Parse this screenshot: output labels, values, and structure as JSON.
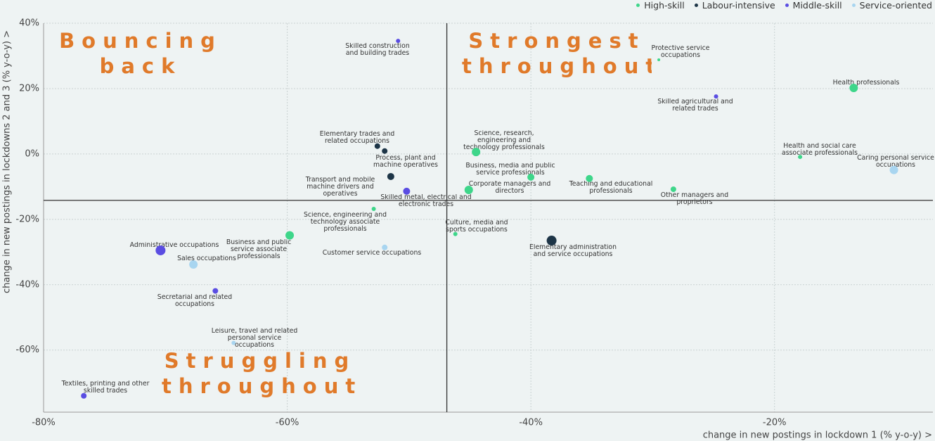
{
  "chart_data": {
    "type": "scatter",
    "x_label": "change in new postings in lockdown 1 (% y-o-y) >",
    "y_label": "change in new postings in lockdowns 2 and 3 (% y-o-y) >",
    "xlim": [
      -80,
      -7
    ],
    "ylim": [
      -79,
      40
    ],
    "xticks": [
      {
        "value": -80,
        "label": "-80%"
      },
      {
        "value": -60,
        "label": "-60%"
      },
      {
        "value": -40,
        "label": "-40%"
      },
      {
        "value": -20,
        "label": "-20%"
      }
    ],
    "yticks": [
      {
        "value": 40,
        "label": "40%"
      },
      {
        "value": 20,
        "label": "20%"
      },
      {
        "value": 0,
        "label": "0%"
      },
      {
        "value": -20,
        "label": "-20%"
      },
      {
        "value": -40,
        "label": "-40%"
      },
      {
        "value": -60,
        "label": "-60%"
      }
    ],
    "grid": true,
    "legend": "top-right",
    "xref": -46.9,
    "yref": -14.2,
    "quadrant_labels": [
      "Bouncing back",
      "Strongest throughout",
      "Struggling throughout"
    ],
    "series": [
      {
        "name": "High-skill",
        "color": "#3ed68a",
        "labels": [
          "Protective service occupations",
          "Health professionals",
          "Health and social care associate professionals",
          "Science, research, engineering and technology professionals",
          "Business, media and public service professionals",
          "Teaching and educational professionals",
          "Other managers and proprietors",
          "Corporate managers and directors",
          "Science, engineering and technology associate professionals",
          "Culture, media and sports occupations",
          "Business and public service associate professionals"
        ],
        "x": [
          -29.5,
          -13.5,
          -17.9,
          -44.5,
          -40,
          -35.2,
          -28.3,
          -45.1,
          -52.9,
          -46.2,
          -59.8
        ],
        "values": [
          28.8,
          20.2,
          -0.9,
          0.6,
          -7.1,
          -7.5,
          -10.8,
          -11,
          -16.8,
          -24.5,
          -24.9
        ],
        "sizes": [
          2,
          6,
          3,
          6,
          5,
          5,
          4,
          6,
          3,
          3,
          6
        ]
      },
      {
        "name": "Labour-intensive",
        "color": "#1d3547",
        "labels": [
          "Elementary trades and related occupations",
          "Process, plant and machine operatives",
          "Transport and mobile machine drivers and operatives",
          "Elementary administration and service occupations"
        ],
        "x": [
          -52.6,
          -52,
          -51.5,
          -38.3
        ],
        "values": [
          2.4,
          0.9,
          -6.9,
          -26.5
        ],
        "sizes": [
          4,
          4,
          5,
          7
        ]
      },
      {
        "name": "Middle-skill",
        "color": "#5a4de2",
        "labels": [
          "Skilled construction and building trades",
          "Skilled agricultural and related trades",
          "Skilled metal, electrical and electronic trades",
          "Administrative occupations",
          "Secretarial and related occupations",
          "Textiles, printing and other skilled trades"
        ],
        "x": [
          -50.9,
          -24.8,
          -50.2,
          -70.4,
          -65.9,
          -76.7
        ],
        "values": [
          34.6,
          17.6,
          -11.4,
          -29.5,
          -41.9,
          -74
        ],
        "sizes": [
          3,
          3,
          5,
          7,
          4,
          4
        ]
      },
      {
        "name": "Service-oriented",
        "color": "#a8d5f0",
        "labels": [
          "Caring personal service occupations",
          "Customer service occupations",
          "Sales occupations",
          "Leisure, travel and related personal service occupations"
        ],
        "x": [
          -10.2,
          -52,
          -67.7,
          -64.4
        ],
        "values": [
          -4.9,
          -28.6,
          -33.8,
          -57.8
        ],
        "sizes": [
          6,
          4,
          6,
          3
        ]
      }
    ]
  }
}
